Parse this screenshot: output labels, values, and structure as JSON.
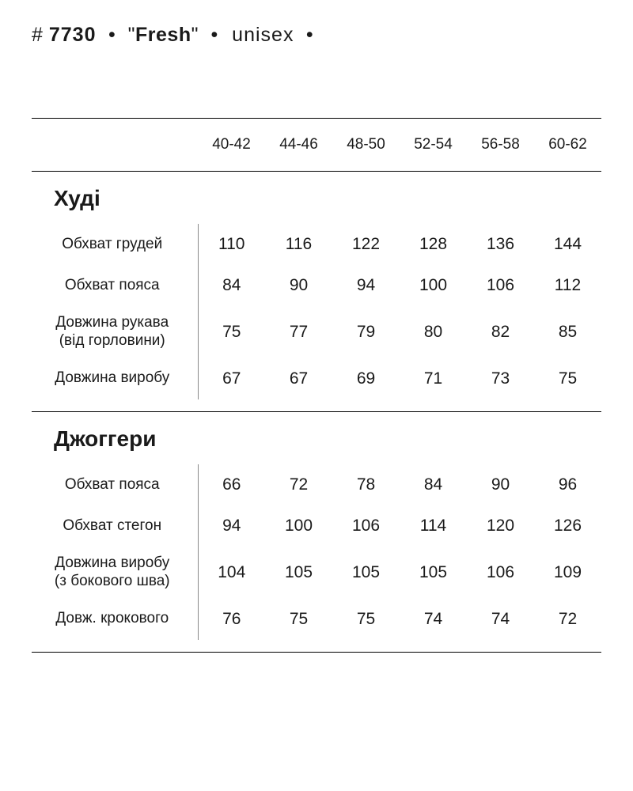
{
  "header": {
    "hash": "#",
    "number": "7730",
    "bullet": "•",
    "quote_open": "\"",
    "name": "Fresh",
    "quote_close": "\"",
    "unisex": "unisex"
  },
  "sizes": [
    "40-42",
    "44-46",
    "48-50",
    "52-54",
    "56-58",
    "60-62"
  ],
  "section1": {
    "title": "Худі",
    "rows": [
      {
        "label": "Обхват грудей",
        "sub": "",
        "values": [
          "110",
          "116",
          "122",
          "128",
          "136",
          "144"
        ]
      },
      {
        "label": "Обхват пояса",
        "sub": "",
        "values": [
          "84",
          "90",
          "94",
          "100",
          "106",
          "112"
        ]
      },
      {
        "label": "Довжина рукава",
        "sub": "(від горловини)",
        "values": [
          "75",
          "77",
          "79",
          "80",
          "82",
          "85"
        ]
      },
      {
        "label": "Довжина виробу",
        "sub": "",
        "values": [
          "67",
          "67",
          "69",
          "71",
          "73",
          "75"
        ]
      }
    ]
  },
  "section2": {
    "title": "Джоггери",
    "rows": [
      {
        "label": "Обхват пояса",
        "sub": "",
        "values": [
          "66",
          "72",
          "78",
          "84",
          "90",
          "96"
        ]
      },
      {
        "label": "Обхват стегон",
        "sub": "",
        "values": [
          "94",
          "100",
          "106",
          "114",
          "120",
          "126"
        ]
      },
      {
        "label": "Довжина виробу",
        "sub": "(з бокового шва)",
        "values": [
          "104",
          "105",
          "105",
          "105",
          "106",
          "109"
        ]
      },
      {
        "label": "Довж. крокового",
        "sub": "",
        "values": [
          "76",
          "75",
          "75",
          "74",
          "74",
          "72"
        ]
      }
    ]
  },
  "colors": {
    "text": "#1a1a1a",
    "rule": "#000000",
    "divider": "#888888",
    "background": "#ffffff"
  },
  "typography": {
    "header_fontsize": 25,
    "section_title_fontsize": 28,
    "size_head_fontsize": 19,
    "row_label_fontsize": 19,
    "sublabel_fontsize": 17,
    "cell_fontsize": 21
  }
}
